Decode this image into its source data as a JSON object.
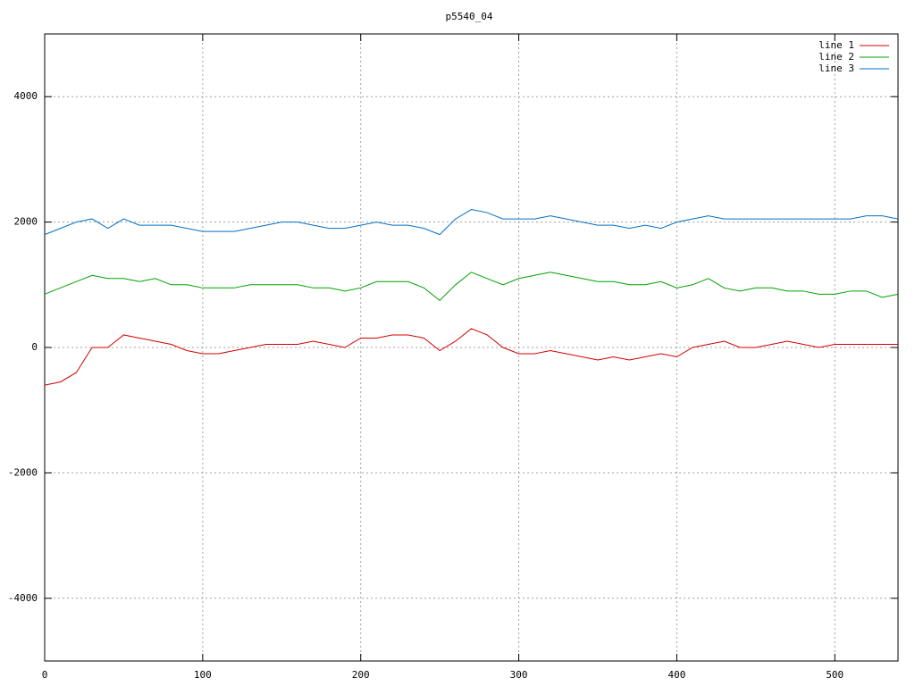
{
  "chart_data": {
    "type": "line",
    "title": "p5540_04",
    "x": [
      0,
      10,
      20,
      30,
      40,
      50,
      60,
      70,
      80,
      90,
      100,
      110,
      120,
      130,
      140,
      150,
      160,
      170,
      180,
      190,
      200,
      210,
      220,
      230,
      240,
      250,
      260,
      270,
      280,
      290,
      300,
      310,
      320,
      330,
      340,
      350,
      360,
      370,
      380,
      390,
      400,
      410,
      420,
      430,
      440,
      450,
      460,
      470,
      480,
      490,
      500,
      510,
      520,
      530,
      540
    ],
    "series": [
      {
        "name": "line 1",
        "color": "#d40000",
        "values": [
          -600,
          -550,
          -400,
          0,
          0,
          200,
          150,
          100,
          50,
          -50,
          -100,
          -100,
          -50,
          0,
          50,
          50,
          50,
          100,
          50,
          0,
          150,
          150,
          200,
          200,
          150,
          -50,
          100,
          300,
          200,
          0,
          -100,
          -100,
          -50,
          -100,
          -150,
          -200,
          -150,
          -200,
          -150,
          -100,
          -150,
          0,
          50,
          100,
          0,
          0,
          50,
          100,
          50,
          0,
          50,
          50,
          50,
          50,
          50
        ]
      },
      {
        "name": "line 2",
        "color": "#00a000",
        "values": [
          850,
          950,
          1050,
          1150,
          1100,
          1100,
          1050,
          1100,
          1000,
          1000,
          950,
          950,
          950,
          1000,
          1000,
          1000,
          1000,
          950,
          950,
          900,
          950,
          1050,
          1050,
          1050,
          950,
          750,
          1000,
          1200,
          1100,
          1000,
          1100,
          1150,
          1200,
          1150,
          1100,
          1050,
          1050,
          1000,
          1000,
          1050,
          950,
          1000,
          1100,
          950,
          900,
          950,
          950,
          900,
          900,
          850,
          850,
          900,
          900,
          800,
          850
        ]
      },
      {
        "name": "line 3",
        "color": "#0070c8",
        "values": [
          1800,
          1900,
          2000,
          2050,
          1900,
          2050,
          1950,
          1950,
          1950,
          1900,
          1850,
          1850,
          1850,
          1900,
          1950,
          2000,
          2000,
          1950,
          1900,
          1900,
          1950,
          2000,
          1950,
          1950,
          1900,
          1800,
          2050,
          2200,
          2150,
          2050,
          2050,
          2050,
          2100,
          2050,
          2000,
          1950,
          1950,
          1900,
          1950,
          1900,
          2000,
          2050,
          2100,
          2050,
          2050,
          2050,
          2050,
          2050,
          2050,
          2050,
          2050,
          2050,
          2100,
          2100,
          2050
        ]
      }
    ],
    "xlim": [
      0,
      540
    ],
    "ylim": [
      -5000,
      5000
    ],
    "xticks": [
      0,
      100,
      200,
      300,
      400,
      500
    ],
    "yticks": [
      -4000,
      -2000,
      0,
      2000,
      4000
    ],
    "grid": true,
    "legend": "top-right"
  }
}
